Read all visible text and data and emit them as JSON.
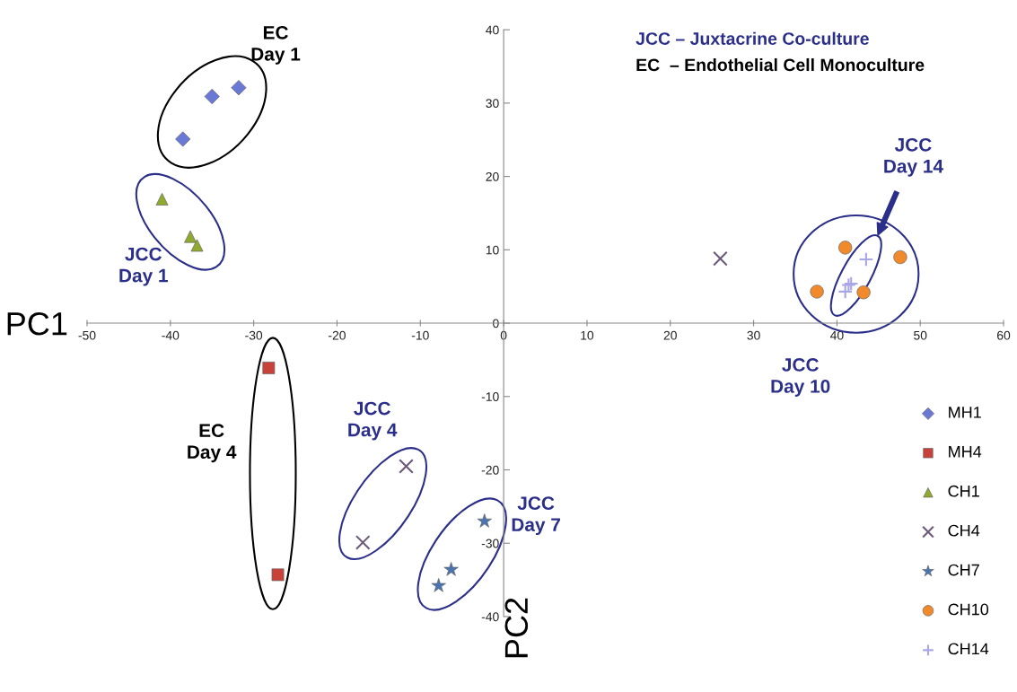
{
  "chart_data": {
    "type": "scatter",
    "xlabel": "PC1",
    "ylabel": "PC2",
    "xlim": [
      -50,
      60
    ],
    "ylim": [
      -40,
      40
    ],
    "xticks": [
      -50,
      -40,
      -30,
      -20,
      -10,
      0,
      10,
      20,
      30,
      40,
      50,
      60
    ],
    "yticks": [
      -40,
      -30,
      -20,
      -10,
      0,
      10,
      20,
      30,
      40
    ],
    "grid": false,
    "legend": "bottom right",
    "series": [
      {
        "name": "MH1",
        "color": "#6a78d6",
        "marker": "diamond",
        "x": [
          -38.5,
          -35.0,
          -31.8
        ],
        "values": [
          25.1,
          30.9,
          32.1
        ]
      },
      {
        "name": "MH4",
        "color": "#c9423a",
        "marker": "square",
        "x": [
          -28.2,
          -27.1
        ],
        "values": [
          -6.1,
          -34.3
        ]
      },
      {
        "name": "CH1",
        "color": "#8faa2e",
        "marker": "triangle",
        "x": [
          -41.0,
          -37.6,
          -36.8
        ],
        "values": [
          16.9,
          11.8,
          10.6
        ]
      },
      {
        "name": "CH4",
        "color": "#6b5a78",
        "marker": "cross",
        "x": [
          -16.9,
          -11.7,
          26.0
        ],
        "values": [
          -29.9,
          -19.5,
          8.8
        ]
      },
      {
        "name": "CH7",
        "color": "#4a74b0",
        "marker": "star",
        "x": [
          -2.3,
          -6.3,
          -7.8
        ],
        "values": [
          -27.0,
          -33.6,
          -35.8
        ]
      },
      {
        "name": "CH10",
        "color": "#f08a2c",
        "marker": "circle",
        "x": [
          41.0,
          47.6,
          37.6,
          43.2
        ],
        "values": [
          10.3,
          9.0,
          4.3,
          4.2
        ]
      },
      {
        "name": "CH14",
        "color": "#a9a6e6",
        "marker": "plus",
        "x": [
          43.5,
          41.7,
          41.4,
          41.0
        ],
        "values": [
          8.7,
          5.4,
          5.2,
          4.3
        ]
      }
    ],
    "annotations": [
      "JCC – Juxtacrine Co-culture",
      "EC  – Endothelial Cell Monoculture",
      "EC\nDay 1",
      "JCC\nDay 1",
      "EC\nDay 4",
      "JCC\nDay 4",
      "JCC\nDay 7",
      "JCC\nDay 10",
      "JCC\nDay 14"
    ]
  }
}
